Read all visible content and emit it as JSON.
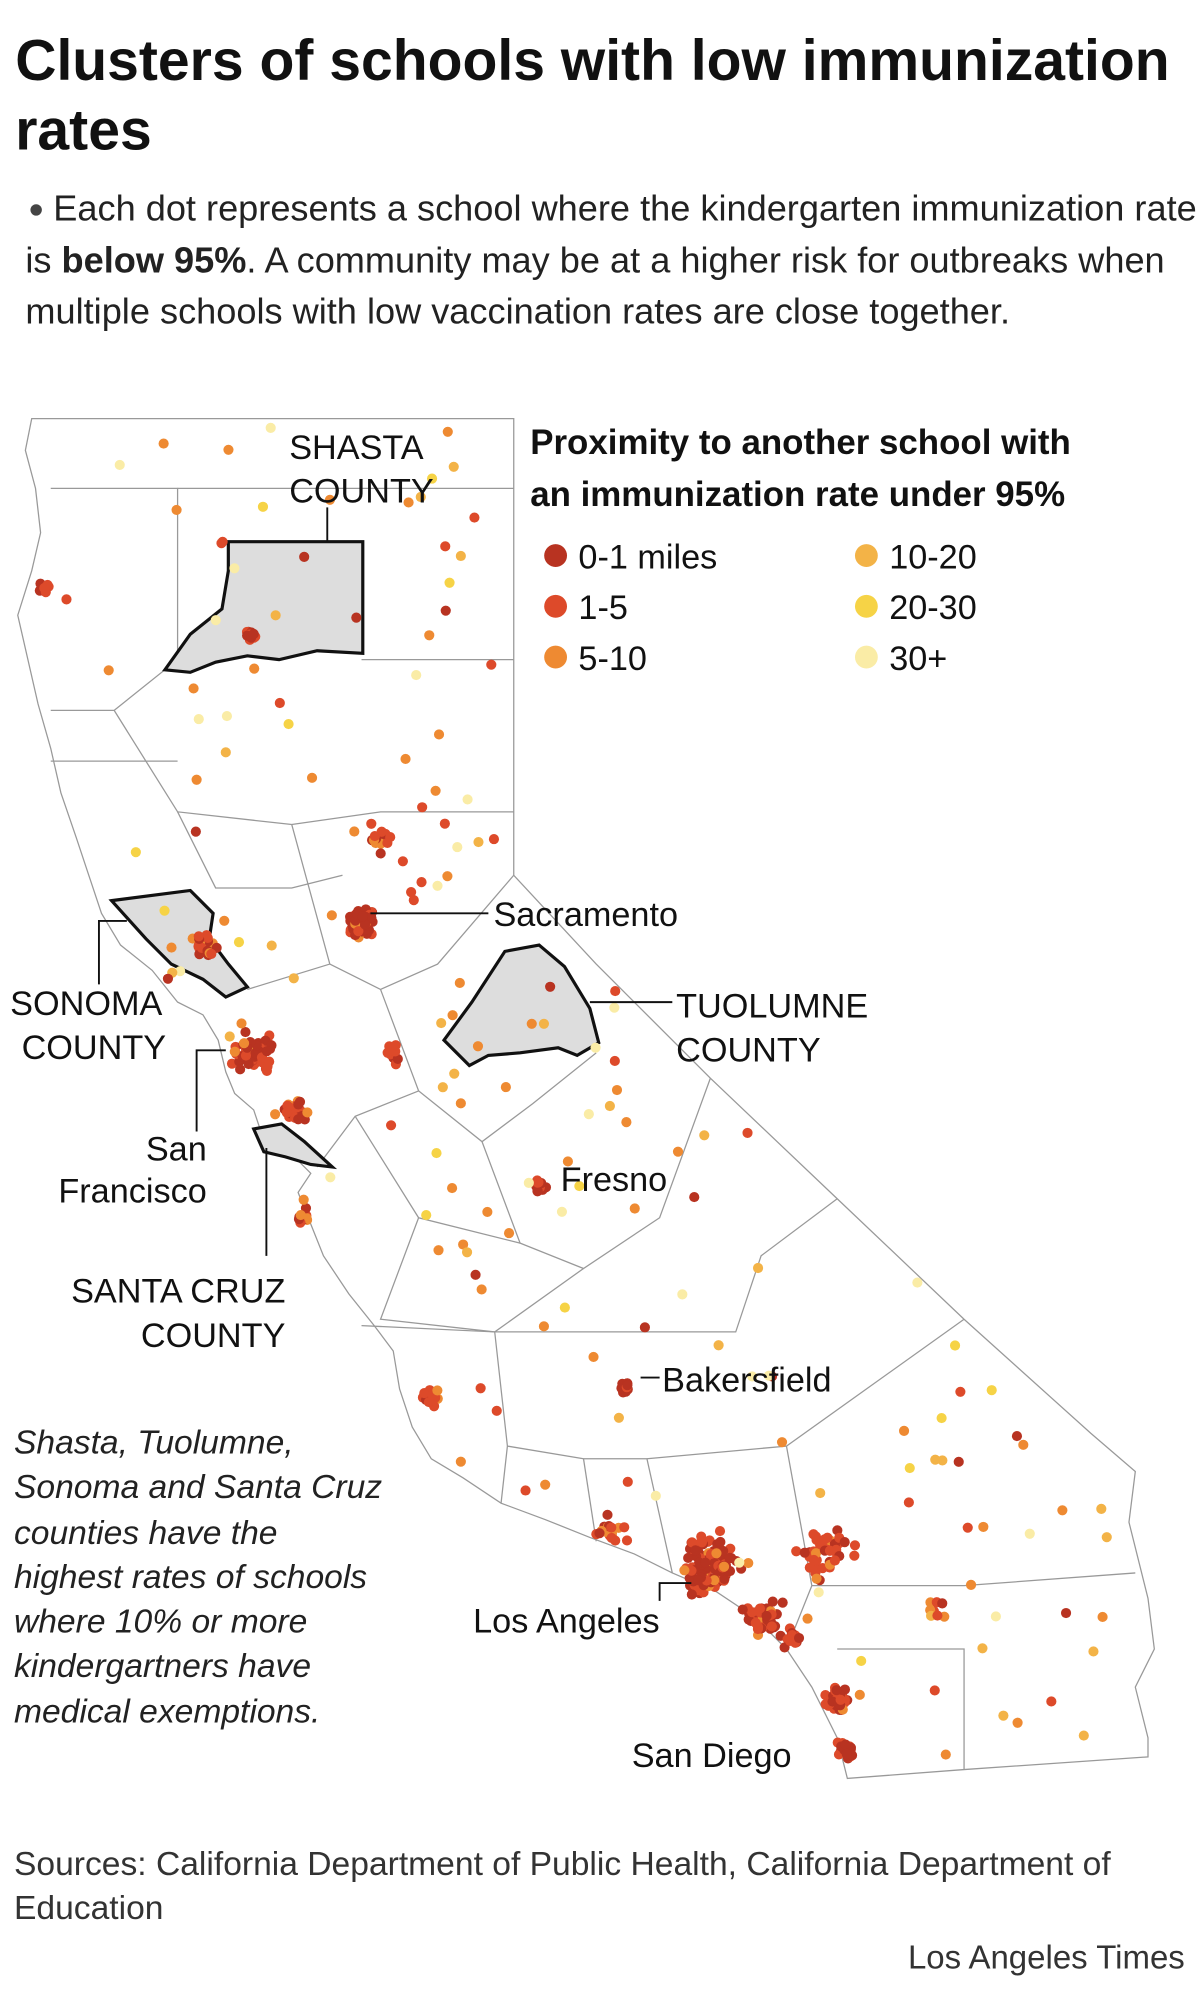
{
  "header": {
    "title": "Clusters of schools with low immunization rates",
    "subtitle": [
      "Each dot represents a school where the kindergarten immunization rate is ",
      "below 95%",
      ". A community may be at a higher risk for outbreaks when multiple schools with low vaccination rates are close together."
    ]
  },
  "legend": {
    "title": "Proximity to another school with an immunization rate under 95%",
    "items": [
      {
        "label": "0-1 miles",
        "color": "#b83321"
      },
      {
        "label": "1-5",
        "color": "#dd4a2a"
      },
      {
        "label": "5-10",
        "color": "#ee8a32"
      },
      {
        "label": "10-20",
        "color": "#f3b347"
      },
      {
        "label": "20-30",
        "color": "#f6d346"
      },
      {
        "label": "30+",
        "color": "#faeca6"
      }
    ]
  },
  "map_labels": {
    "shasta": [
      "SHASTA",
      "COUNTY"
    ],
    "sonoma": [
      "SONOMA",
      "COUNTY"
    ],
    "tuolumne": [
      "TUOLUMNE",
      "COUNTY"
    ],
    "santa_cruz": [
      "SANTA CRUZ",
      "COUNTY"
    ],
    "san_francisco": [
      "San",
      "Francisco"
    ],
    "sacramento": "Sacramento",
    "fresno": "Fresno",
    "bakersfield": "Bakersfield",
    "los_angeles": "Los Angeles",
    "san_diego": "San Diego"
  },
  "note": "Shasta, Tuolumne, Sonoma and Santa Cruz counties have the highest rates of schools where 10% or more kindergartners have medical exemptions.",
  "footer": {
    "sources": "Sources: California Department of Public Health, California Department of Education",
    "credit": "Los Angeles Times"
  }
}
